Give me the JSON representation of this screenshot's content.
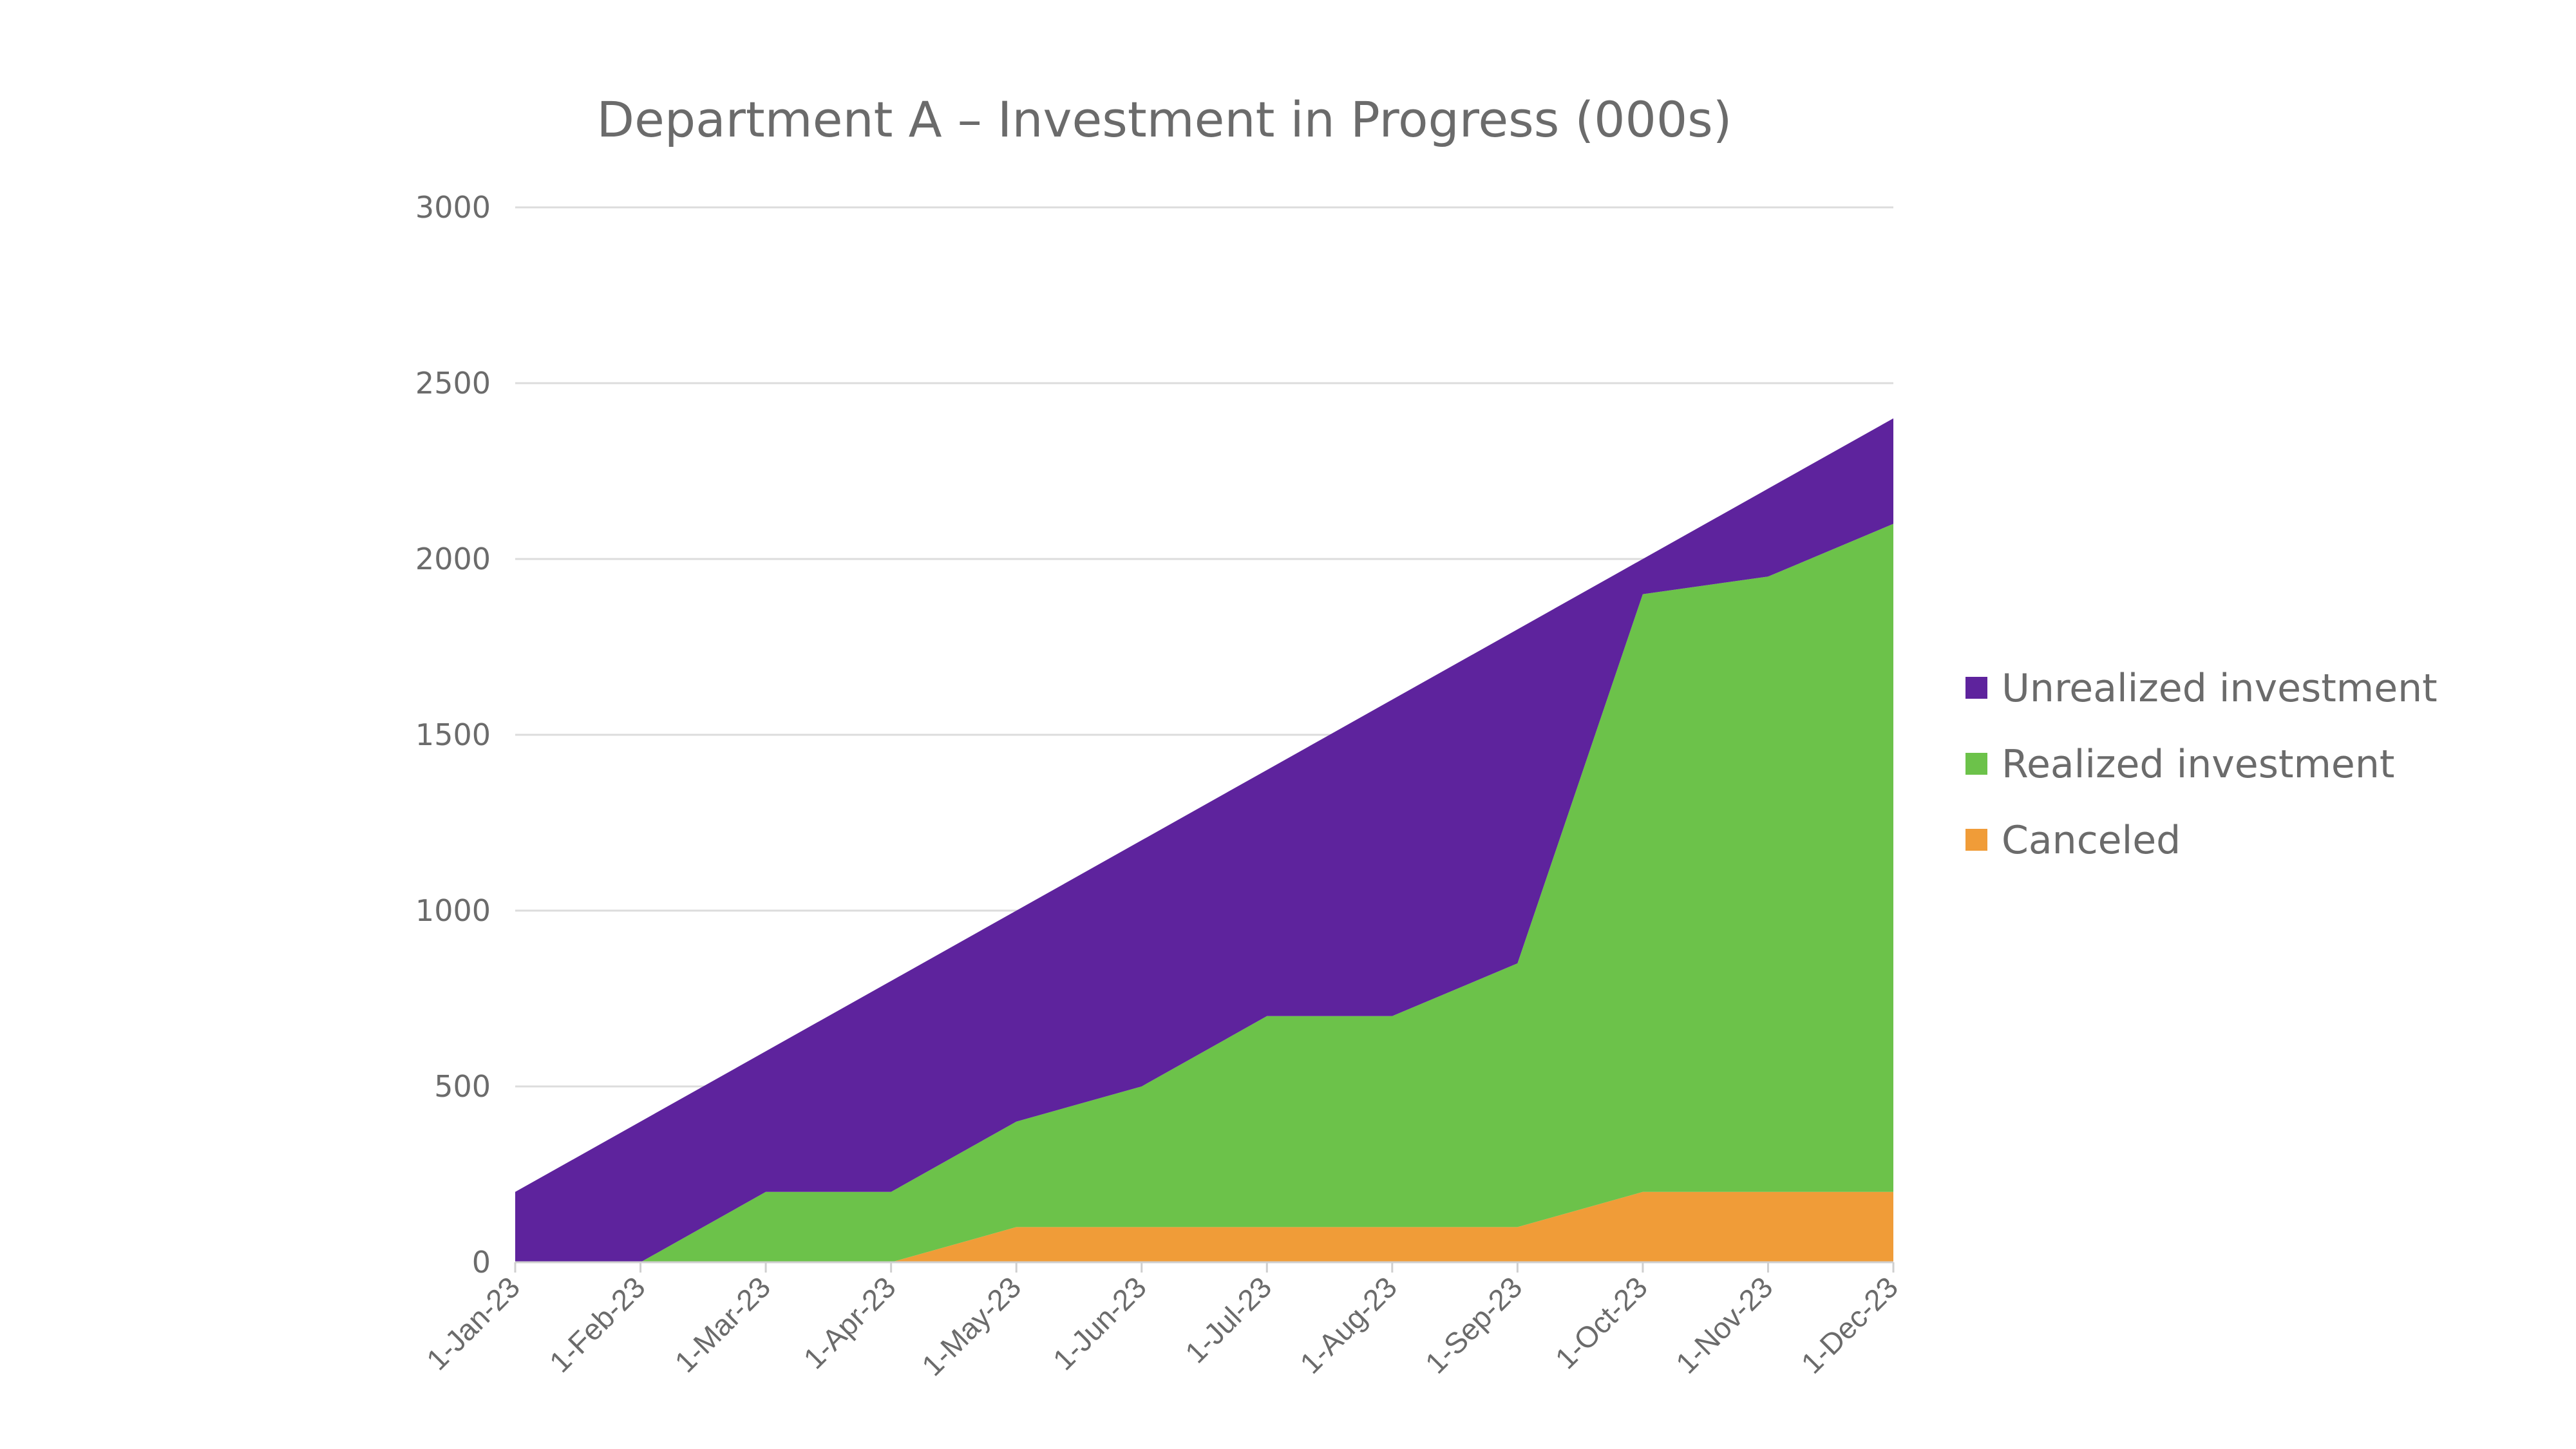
{
  "chart_data": {
    "type": "area",
    "stacked": true,
    "title": "Department A – Investment in Progress (000s)",
    "xlabel": "",
    "ylabel": "",
    "categories": [
      "1-Jan-23",
      "1-Feb-23",
      "1-Mar-23",
      "1-Apr-23",
      "1-May-23",
      "1-Jun-23",
      "1-Jul-23",
      "1-Aug-23",
      "1-Sep-23",
      "1-Oct-23",
      "1-Nov-23",
      "1-Dec-23"
    ],
    "ylim": [
      0,
      3000
    ],
    "yticks": [
      0,
      500,
      1000,
      1500,
      2000,
      2500,
      3000
    ],
    "grid": true,
    "legend_position": "right",
    "series": [
      {
        "name": "Canceled",
        "color": "#f09c38",
        "values": [
          0,
          0,
          0,
          0,
          100,
          100,
          100,
          100,
          100,
          200,
          200,
          200
        ]
      },
      {
        "name": "Realized investment",
        "color": "#6cc24a",
        "values": [
          0,
          0,
          200,
          200,
          300,
          400,
          600,
          600,
          750,
          1700,
          1750,
          1900
        ]
      },
      {
        "name": "Unrealized investment",
        "color": "#5e239d",
        "values": [
          200,
          400,
          400,
          600,
          600,
          700,
          700,
          900,
          950,
          100,
          250,
          300
        ]
      }
    ],
    "legend_order": [
      "Unrealized investment",
      "Realized investment",
      "Canceled"
    ]
  }
}
